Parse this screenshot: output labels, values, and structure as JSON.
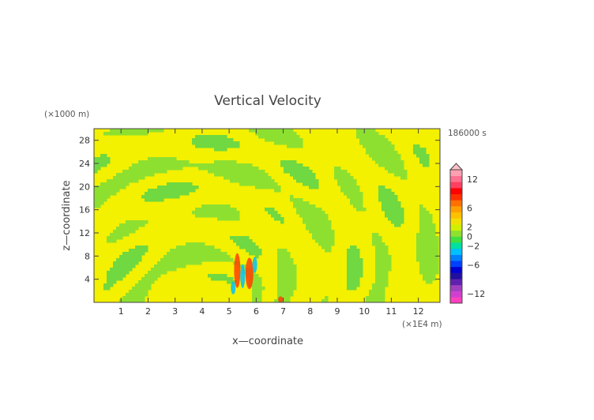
{
  "chart_data": {
    "type": "heatmap",
    "title": "Vertical Velocity",
    "xlabel": "x—coordinate",
    "ylabel": "z—coordinate",
    "x_unit": "(×1E4 m)",
    "y_unit": "(×1000 m)",
    "time_label": "186000 s",
    "xlim": [
      0,
      12.8
    ],
    "ylim": [
      0,
      30
    ],
    "x_ticks": [
      "1",
      "2",
      "3",
      "4",
      "5",
      "6",
      "7",
      "8",
      "9",
      "10",
      "11",
      "12"
    ],
    "y_ticks": [
      "4",
      "8",
      "12",
      "16",
      "20",
      "24",
      "28"
    ],
    "colorbar": {
      "range": [
        -14,
        14
      ],
      "tick_labels": [
        "12",
        "6",
        "2",
        "0",
        "−2",
        "−6",
        "−12"
      ],
      "tick_values": [
        12,
        6,
        2,
        0,
        -2,
        -6,
        -12
      ]
    },
    "palette": {
      "background_field": "#f3f000",
      "positive_small": "#8ee030",
      "negative_small": "#70d840",
      "strong_pos": "#ff4000",
      "strong_neg": "#00c0ff"
    },
    "grid": false
  }
}
